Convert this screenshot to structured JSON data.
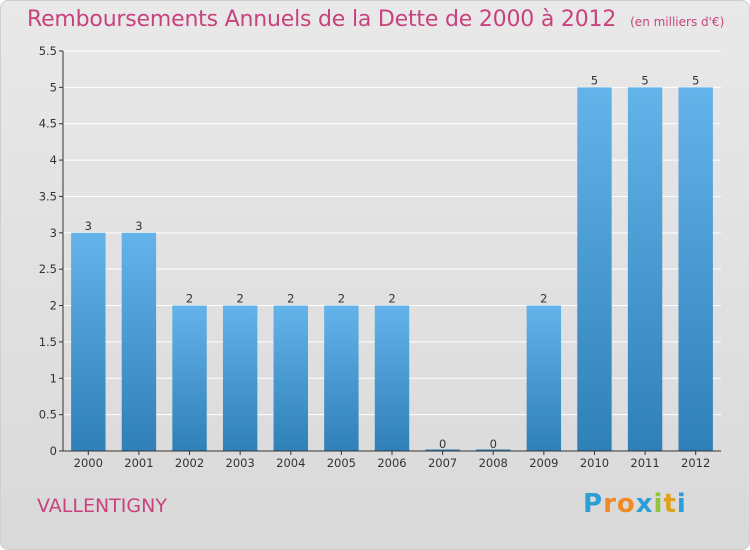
{
  "header": {
    "title": "Remboursements Annuels de la Dette de 2000 à 2012",
    "subtitle": "(en milliers d'€)"
  },
  "footer": {
    "commune": "VALLENTIGNY",
    "logo_letters": [
      "P",
      "r",
      "o",
      "x",
      "i",
      "t",
      "i"
    ],
    "logo_colors": [
      "#2e9fd6",
      "#f08a24",
      "#f08a24",
      "#2e9fd6",
      "#8fc53c",
      "#e0a21b",
      "#2e9fd6"
    ]
  },
  "colors": {
    "title": "#c8437e",
    "bar_light": "#64b3ea",
    "bar_dark": "#2f7fb9"
  },
  "chart_data": {
    "type": "bar",
    "categories": [
      "2000",
      "2001",
      "2002",
      "2003",
      "2004",
      "2005",
      "2006",
      "2007",
      "2008",
      "2009",
      "2010",
      "2011",
      "2012"
    ],
    "values": [
      3,
      3,
      2,
      2,
      2,
      2,
      2,
      0,
      0,
      2,
      5,
      5,
      5
    ],
    "data_labels": [
      "3",
      "3",
      "2",
      "2",
      "2",
      "2",
      "2",
      "0",
      "0",
      "2",
      "5",
      "5",
      "5"
    ],
    "y_ticks": [
      "0",
      "0.5",
      "1",
      "1.5",
      "2",
      "2.5",
      "3",
      "3.5",
      "4",
      "4.5",
      "5",
      "5.5"
    ],
    "ylim": [
      0,
      5.5
    ],
    "title": "Remboursements Annuels de la Dette de 2000 à 2012",
    "xlabel": "",
    "ylabel": ""
  }
}
